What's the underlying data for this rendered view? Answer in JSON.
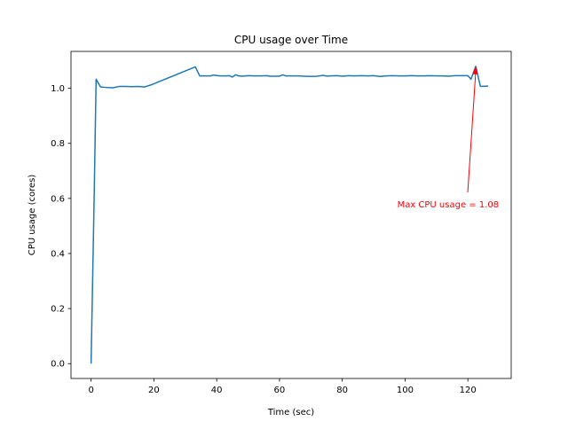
{
  "chart_data": {
    "type": "line",
    "title": "CPU usage over Time",
    "xlabel": "Time (sec)",
    "ylabel": "CPU usage (cores)",
    "xlim": [
      -6.4,
      133.8
    ],
    "ylim": [
      -0.054,
      1.134
    ],
    "xticks": [
      0,
      20,
      40,
      60,
      80,
      100,
      120
    ],
    "xtick_labels": [
      "0",
      "20",
      "40",
      "60",
      "80",
      "100",
      "120"
    ],
    "yticks": [
      0.0,
      0.2,
      0.4,
      0.6,
      0.8,
      1.0
    ],
    "ytick_labels": [
      "0.0",
      "0.2",
      "0.4",
      "0.6",
      "0.8",
      "1.0"
    ],
    "grid": false,
    "series": [
      {
        "color": "#1f77b4",
        "x": [
          0,
          1,
          1.6,
          3,
          5,
          7,
          9,
          11,
          13,
          15,
          17,
          19,
          33.2,
          34.6,
          36,
          38,
          39,
          41,
          43,
          44,
          45,
          46,
          47,
          48,
          50,
          52,
          54,
          56,
          57,
          58,
          60,
          61,
          62,
          64,
          66,
          68,
          70,
          72,
          74,
          75,
          76,
          78,
          80,
          82,
          84,
          86,
          88,
          90,
          92,
          94,
          96,
          98,
          100,
          102,
          104,
          106,
          108,
          110,
          112,
          114,
          116,
          118,
          120,
          121,
          122.5,
          124,
          126.5
        ],
        "y": [
          0.0,
          0.62,
          1.033,
          1.005,
          1.003,
          1.002,
          1.007,
          1.007,
          1.006,
          1.007,
          1.005,
          1.012,
          1.078,
          1.045,
          1.045,
          1.045,
          1.048,
          1.045,
          1.045,
          1.046,
          1.041,
          1.049,
          1.045,
          1.044,
          1.046,
          1.045,
          1.045,
          1.046,
          1.044,
          1.044,
          1.044,
          1.049,
          1.045,
          1.045,
          1.045,
          1.044,
          1.043,
          1.044,
          1.047,
          1.044,
          1.045,
          1.046,
          1.044,
          1.046,
          1.045,
          1.046,
          1.045,
          1.046,
          1.043,
          1.045,
          1.046,
          1.045,
          1.045,
          1.046,
          1.045,
          1.045,
          1.046,
          1.045,
          1.045,
          1.044,
          1.046,
          1.046,
          1.046,
          1.033,
          1.08,
          1.007,
          1.008
        ]
      }
    ],
    "annotation": {
      "text": "Max CPU usage = 1.08",
      "color": "#ff0000",
      "point": [
        122.5,
        1.08
      ],
      "text_pos": [
        97.5,
        0.58
      ]
    }
  }
}
